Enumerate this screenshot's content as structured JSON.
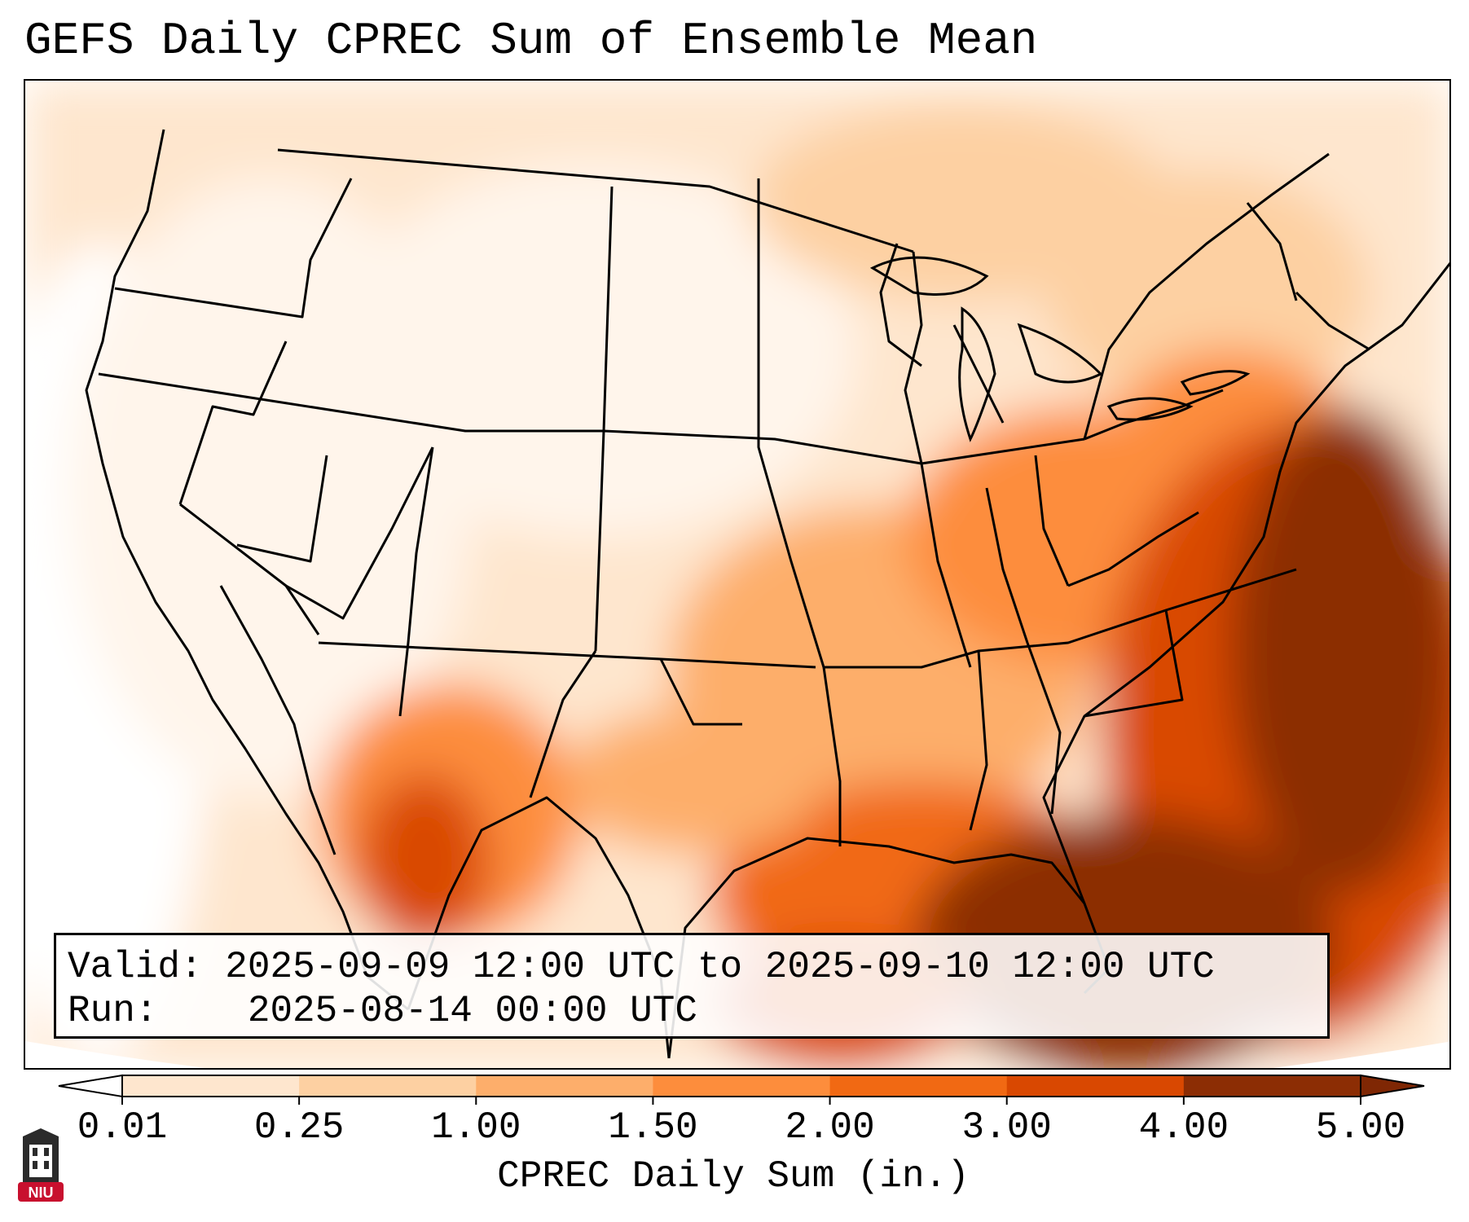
{
  "title": "GEFS Daily CPREC Sum of Ensemble Mean",
  "info": {
    "valid_label": "Valid:",
    "valid_value": "2025-09-09 12:00 UTC to 2025-09-10 12:00 UTC",
    "run_label": "Run:",
    "run_value": "2025-08-14 00:00 UTC"
  },
  "colorbar": {
    "label": "CPREC Daily Sum (in.)",
    "ticks": [
      "0.01",
      "0.25",
      "1.00",
      "1.50",
      "2.00",
      "3.00",
      "4.00",
      "5.00"
    ],
    "colors": [
      "#fff5eb",
      "#fee6ce",
      "#fdd0a2",
      "#fdae6b",
      "#fd8d3c",
      "#f16913",
      "#d94801",
      "#8c2d04"
    ],
    "under_color": "#ffffff",
    "over_color": "#7f2704"
  },
  "logo": {
    "text": "NIU"
  }
}
